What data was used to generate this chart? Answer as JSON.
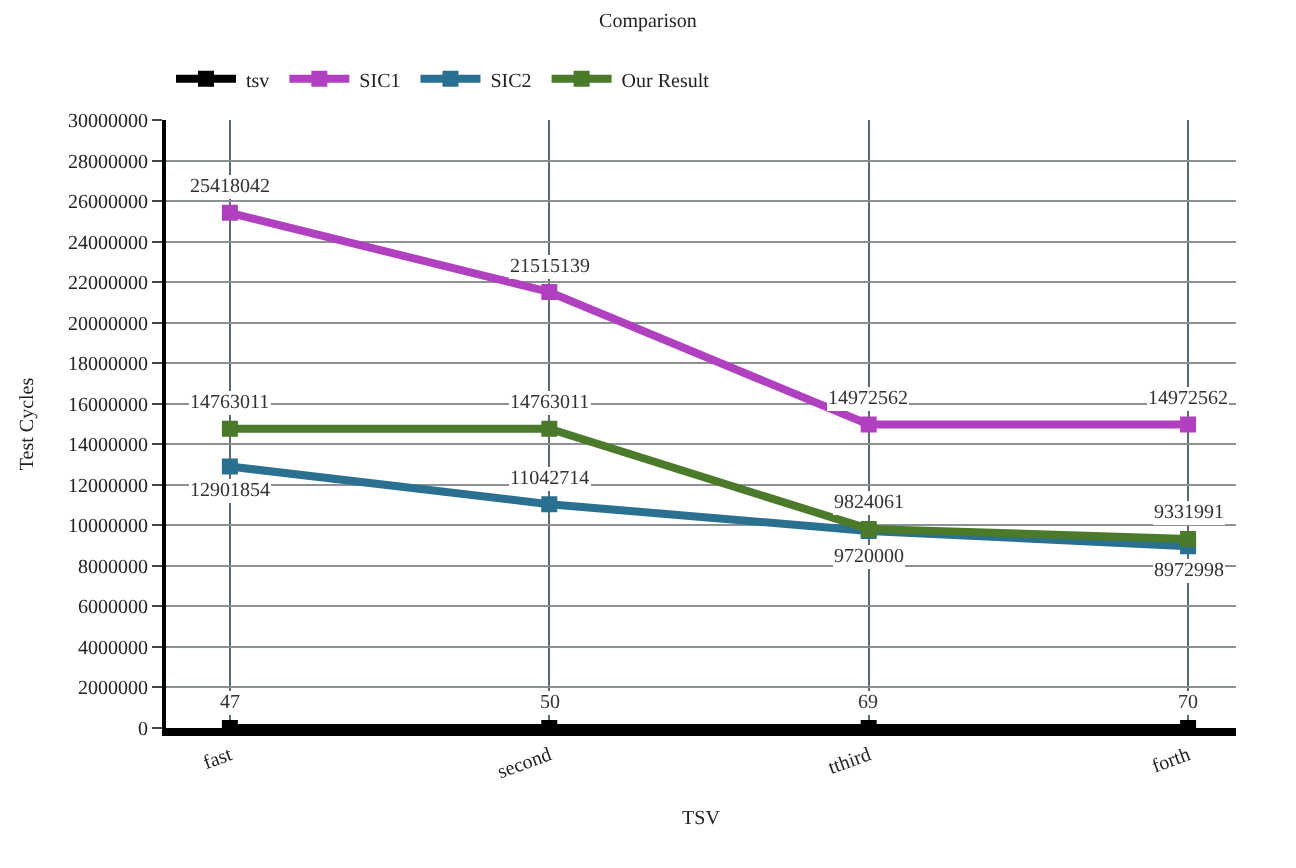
{
  "chart_data": {
    "type": "line",
    "title": "Comparison",
    "xlabel": "TSV",
    "ylabel": "Test Cycles",
    "categories": [
      "fast",
      "second",
      "tthird",
      "forth"
    ],
    "series": [
      {
        "name": "tsv",
        "color": "#000000",
        "values": [
          47,
          50,
          69,
          70
        ]
      },
      {
        "name": "SIC1",
        "color": "#b040c0",
        "values": [
          25418042,
          21515139,
          14972562,
          14972562
        ]
      },
      {
        "name": "SIC2",
        "color": "#2a7090",
        "values": [
          12901854,
          11042714,
          9720000,
          8972998
        ]
      },
      {
        "name": "Our Result",
        "color": "#4a7a2a",
        "values": [
          14763011,
          14763011,
          9824061,
          9331991
        ]
      }
    ],
    "ylim": [
      0,
      30000000
    ],
    "yticks": [
      0,
      2000000,
      4000000,
      6000000,
      8000000,
      10000000,
      12000000,
      14000000,
      16000000,
      18000000,
      20000000,
      22000000,
      24000000,
      26000000,
      28000000,
      30000000
    ],
    "grid": true,
    "legend": "top left",
    "marker": "square",
    "line_style": "solid",
    "data_labels": true
  }
}
